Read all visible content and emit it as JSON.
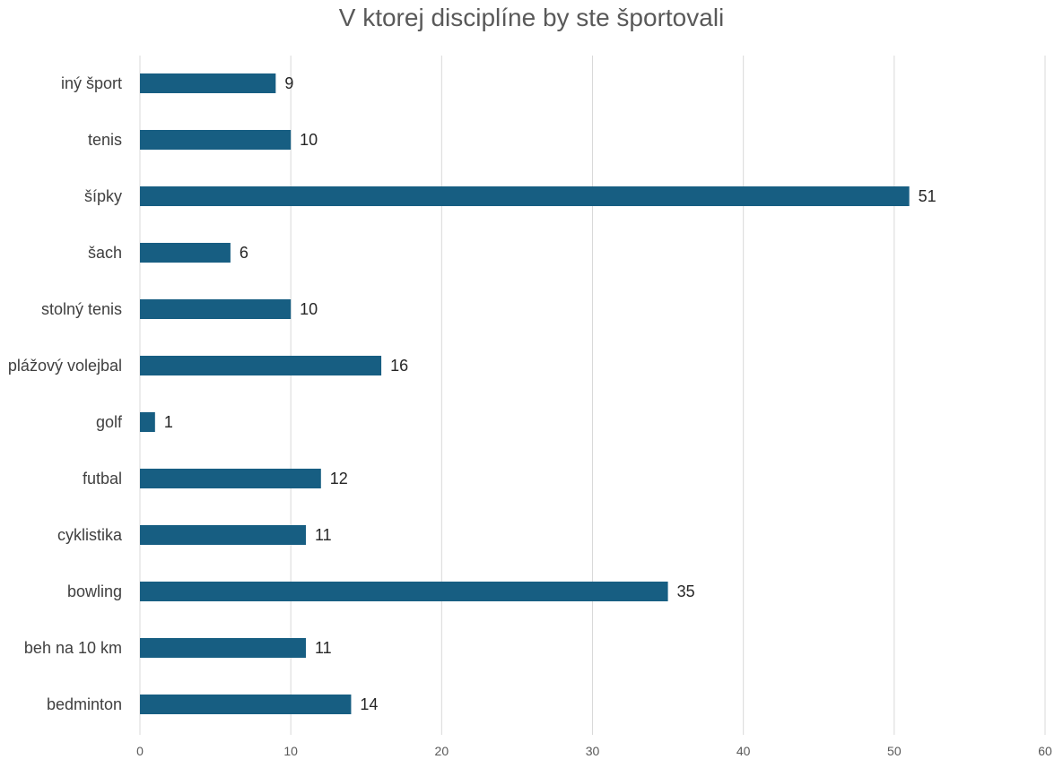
{
  "chart_data": {
    "type": "bar",
    "orientation": "horizontal",
    "title": "V ktorej disciplíne by ste športovali",
    "categories": [
      "iný šport",
      "tenis",
      "šípky",
      "šach",
      "stolný tenis",
      "plážový volejbal",
      "golf",
      "futbal",
      "cyklistika",
      "bowling",
      "beh na 10 km",
      "bedminton"
    ],
    "values": [
      9,
      10,
      51,
      6,
      10,
      16,
      1,
      12,
      11,
      35,
      11,
      14
    ],
    "xlim": [
      0,
      60
    ],
    "xticks": [
      0,
      10,
      20,
      30,
      40,
      50,
      60
    ],
    "xlabel": "",
    "ylabel": "",
    "grid": true,
    "data_labels": true,
    "bar_color": "#175e82",
    "grid_color": "#d9d9d9"
  }
}
